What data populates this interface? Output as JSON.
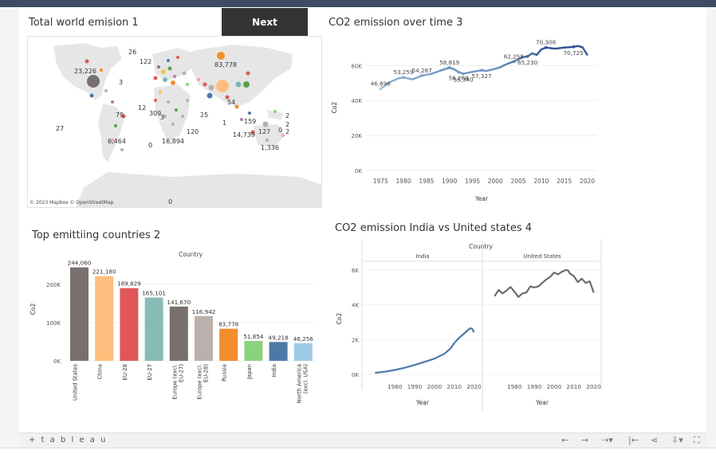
{
  "dashboard": {
    "next_label": "Next",
    "map_title": "Total world emision 1",
    "map_attribution": "© 2023 Mapbox © OpenStreetMap",
    "map_labels": [
      "26",
      "122",
      "83,778",
      "23,226",
      "3",
      "54",
      "12",
      "309",
      "3",
      "79",
      "25",
      "2",
      "159",
      "2",
      "14,739",
      "127",
      "0",
      "2",
      "120",
      "6,464",
      "16,894",
      "0",
      "1,336",
      "27",
      "1",
      "0"
    ],
    "co2_time_title": "CO2 emission over time 3",
    "bar_title": "Top emittiing countries 2",
    "india_us_title": "CO2 emission India vs United states 4",
    "footer_logo": "+ t a b l e a u"
  },
  "chart_data": [
    {
      "type": "line",
      "title": "CO2 emission over time 3",
      "xlabel": "Year",
      "ylabel": "Co2",
      "ylim": [
        0,
        72000
      ],
      "yticks": [
        "0K",
        "20K",
        "40K",
        "60K"
      ],
      "xticks": [
        "1975",
        "1980",
        "1985",
        "1990",
        "1995",
        "2000",
        "2005",
        "2010",
        "2015",
        "2020"
      ],
      "x": [
        1975,
        1977,
        1979,
        1980,
        1982,
        1984,
        1986,
        1988,
        1990,
        1991,
        1992,
        1993,
        1995,
        1997,
        1998,
        1999,
        2000,
        2001,
        2002,
        2003,
        2004,
        2005,
        2006,
        2007,
        2008,
        2009,
        2010,
        2011,
        2012,
        2013,
        2014,
        2015,
        2016,
        2017,
        2018,
        2019,
        2020
      ],
      "y": [
        46696,
        50500,
        52800,
        53259,
        52100,
        54287,
        55200,
        57100,
        58819,
        57900,
        56268,
        55340,
        56400,
        57327,
        56900,
        57500,
        58200,
        59000,
        60300,
        61400,
        62258,
        63600,
        64800,
        65230,
        67000,
        66100,
        69200,
        70308,
        70000,
        69700,
        70000,
        70300,
        70500,
        70725,
        71200,
        70400,
        66200
      ],
      "point_labels": [
        {
          "x": 1975,
          "y": 46696,
          "text": "46,696"
        },
        {
          "x": 1980,
          "y": 53259,
          "text": "53,259"
        },
        {
          "x": 1984,
          "y": 54287,
          "text": "54,287"
        },
        {
          "x": 1990,
          "y": 58819,
          "text": "58,819"
        },
        {
          "x": 1992,
          "y": 56268,
          "text": "56,268"
        },
        {
          "x": 1993,
          "y": 55340,
          "text": "55,340"
        },
        {
          "x": 1997,
          "y": 57327,
          "text": "57,327"
        },
        {
          "x": 2004,
          "y": 62258,
          "text": "62,258"
        },
        {
          "x": 2007,
          "y": 65230,
          "text": "65,230"
        },
        {
          "x": 2011,
          "y": 70308,
          "text": "70,308"
        },
        {
          "x": 2017,
          "y": 70725,
          "text": "70,725"
        }
      ]
    },
    {
      "type": "bar",
      "title": "Top emittiing countries 2",
      "group_label": "Country",
      "ylabel": "Co2",
      "ylim": [
        0,
        260000
      ],
      "yticks": [
        "0K",
        "100K",
        "200K"
      ],
      "categories": [
        "United States",
        "China",
        "EU-28",
        "EU-27",
        "Europe (excl. EU-27)",
        "Europe (excl. EU-28)",
        "Russia",
        "Japan",
        "India",
        "North America (excl. USA)"
      ],
      "values": [
        244060,
        221180,
        189829,
        165101,
        141670,
        116942,
        83778,
        51854,
        49218,
        46256
      ],
      "value_labels": [
        "244,060",
        "221,180",
        "189,829",
        "165,101",
        "141,670",
        "116,942",
        "83,778",
        "51,854",
        "49,218",
        "46,256"
      ],
      "colors": [
        "#79706e",
        "#ffbe7d",
        "#e15759",
        "#86bcb6",
        "#79706e",
        "#bab0ac",
        "#f28e2b",
        "#8cd17d",
        "#4e79a7",
        "#a0cbe8"
      ]
    },
    {
      "type": "line",
      "title": "CO2 emission India vs United states 4",
      "group_label": "Country",
      "xlabel": "Year",
      "ylabel": "Co2",
      "ylim": [
        0,
        6500
      ],
      "yticks": [
        "0K",
        "2K",
        "4K",
        "6K"
      ],
      "xticks": [
        "1980",
        "1990",
        "2000",
        "2010",
        "2020"
      ],
      "series": [
        {
          "name": "India",
          "color": "#4e79a7",
          "x": [
            1970,
            1975,
            1980,
            1985,
            1990,
            1995,
            2000,
            2005,
            2008,
            2010,
            2012,
            2014,
            2016,
            2018,
            2019,
            2020
          ],
          "y": [
            90,
            150,
            250,
            380,
            540,
            720,
            900,
            1180,
            1480,
            1800,
            2050,
            2250,
            2450,
            2650,
            2620,
            2420
          ]
        },
        {
          "name": "United States",
          "color": "#6f6a6a",
          "x": [
            1970,
            1972,
            1974,
            1976,
            1978,
            1980,
            1982,
            1984,
            1986,
            1988,
            1990,
            1992,
            1994,
            1996,
            1998,
            2000,
            2002,
            2004,
            2006,
            2007,
            2008,
            2010,
            2012,
            2014,
            2016,
            2018,
            2020
          ],
          "y": [
            4500,
            4850,
            4650,
            4820,
            5020,
            4750,
            4450,
            4650,
            4700,
            5050,
            5000,
            5050,
            5250,
            5450,
            5600,
            5850,
            5750,
            5900,
            6000,
            5980,
            5800,
            5650,
            5300,
            5500,
            5250,
            5350,
            4700
          ]
        }
      ]
    }
  ]
}
